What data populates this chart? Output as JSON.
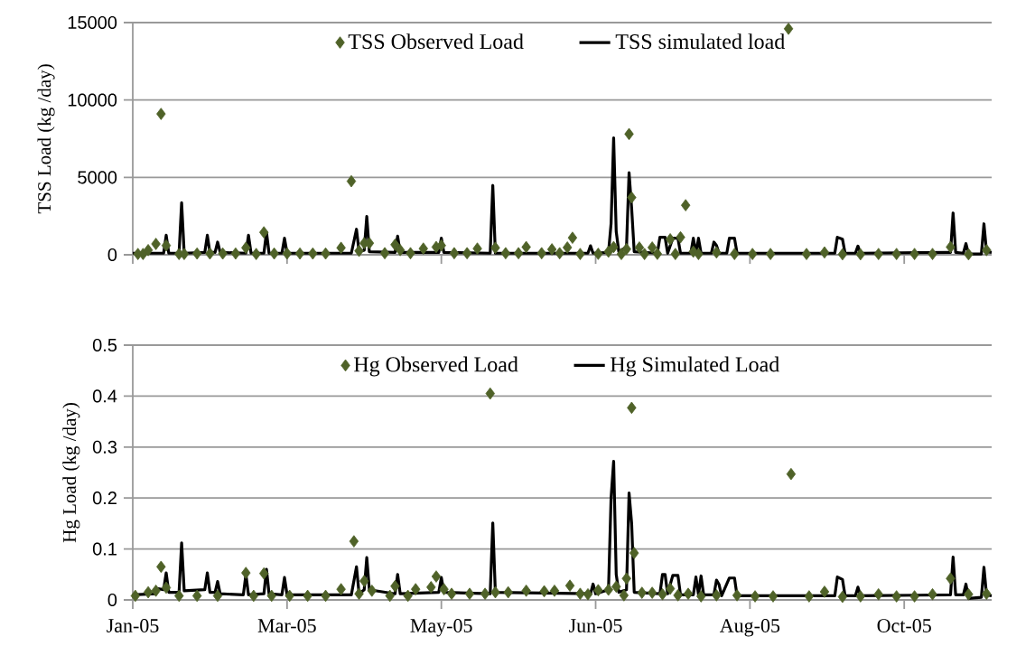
{
  "chart_data": [
    {
      "type": "line",
      "ylabel": "TSS Load (kg /day)",
      "ylim": [
        0,
        15000
      ],
      "yticks": [
        0,
        5000,
        10000,
        15000
      ],
      "xlim": [
        "2005-01-01",
        "2005-12-01"
      ],
      "xticks": [
        {
          "value": "2005-01-01",
          "label": null
        },
        {
          "value": "2005-03-02",
          "label": null
        },
        {
          "value": "2005-05-01",
          "label": null
        },
        {
          "value": "2005-06-30",
          "label": null
        },
        {
          "value": "2005-08-29",
          "label": null
        },
        {
          "value": "2005-10-28",
          "label": null
        }
      ],
      "tick_labels": "y",
      "grid": "y",
      "legend": "top",
      "series": [
        {
          "name": "TSS Observed Load",
          "type": "scatter",
          "marker": "diamond",
          "color": "#4f6228",
          "x": [
            "2005-01-03",
            "2005-01-05",
            "2005-01-07",
            "2005-01-10",
            "2005-01-12",
            "2005-01-14",
            "2005-01-19",
            "2005-01-21",
            "2005-01-26",
            "2005-01-31",
            "2005-02-05",
            "2005-02-10",
            "2005-02-14",
            "2005-02-18",
            "2005-02-21",
            "2005-02-25",
            "2005-03-02",
            "2005-03-07",
            "2005-03-12",
            "2005-03-17",
            "2005-03-23",
            "2005-03-27",
            "2005-03-30",
            "2005-04-01",
            "2005-04-03",
            "2005-04-09",
            "2005-04-13",
            "2005-04-15",
            "2005-04-19",
            "2005-04-24",
            "2005-04-29",
            "2005-05-01",
            "2005-05-06",
            "2005-05-11",
            "2005-05-15",
            "2005-05-22",
            "2005-05-26",
            "2005-05-31",
            "2005-06-03",
            "2005-06-09",
            "2005-06-13",
            "2005-06-16",
            "2005-06-19",
            "2005-06-21",
            "2005-06-24",
            "2005-07-01",
            "2005-07-05",
            "2005-07-07",
            "2005-07-10",
            "2005-07-12",
            "2005-07-13",
            "2005-07-14",
            "2005-07-17",
            "2005-07-19",
            "2005-07-22",
            "2005-07-24",
            "2005-07-29",
            "2005-07-31",
            "2005-08-02",
            "2005-08-04",
            "2005-08-07",
            "2005-08-09",
            "2005-08-16",
            "2005-08-23",
            "2005-08-30",
            "2005-09-06",
            "2005-09-13",
            "2005-09-20",
            "2005-09-27",
            "2005-10-04",
            "2005-10-11",
            "2005-10-18",
            "2005-10-25",
            "2005-11-01",
            "2005-11-08",
            "2005-11-15",
            "2005-11-22",
            "2005-11-29"
          ],
          "values": [
            50,
            50,
            300,
            700,
            9100,
            600,
            50,
            50,
            80,
            80,
            80,
            80,
            450,
            50,
            1450,
            80,
            80,
            80,
            80,
            80,
            450,
            4750,
            250,
            750,
            750,
            100,
            650,
            300,
            100,
            400,
            500,
            600,
            100,
            100,
            400,
            450,
            100,
            100,
            500,
            100,
            350,
            100,
            470,
            1100,
            50,
            60,
            200,
            500,
            50,
            370,
            7800,
            3700,
            470,
            50,
            470,
            60,
            1000,
            50,
            1130,
            3200,
            200,
            50,
            150,
            50,
            50,
            50,
            14600,
            50,
            150,
            30,
            30,
            50,
            50,
            50,
            50,
            500,
            30,
            300
          ]
        },
        {
          "name": "TSS simulated load",
          "type": "line",
          "color": "#000000",
          "x": [
            "2005-01-01",
            "2005-01-13",
            "2005-01-14",
            "2005-01-15",
            "2005-01-19",
            "2005-01-20",
            "2005-01-21",
            "2005-01-29",
            "2005-01-30",
            "2005-01-31",
            "2005-02-02",
            "2005-02-03",
            "2005-02-04",
            "2005-02-14",
            "2005-02-15",
            "2005-02-16",
            "2005-02-21",
            "2005-02-22",
            "2005-02-23",
            "2005-02-28",
            "2005-03-01",
            "2005-03-02",
            "2005-03-27",
            "2005-03-29",
            "2005-03-30",
            "2005-04-01",
            "2005-04-02",
            "2005-04-03",
            "2005-04-13",
            "2005-04-14",
            "2005-04-15",
            "2005-04-30",
            "2005-05-01",
            "2005-05-02",
            "2005-05-20",
            "2005-05-21",
            "2005-05-22",
            "2005-06-27",
            "2005-06-28",
            "2005-06-29",
            "2005-07-05",
            "2005-07-06",
            "2005-07-07",
            "2005-07-08",
            "2005-07-09",
            "2005-07-12",
            "2005-07-13",
            "2005-07-14",
            "2005-07-15",
            "2005-07-24",
            "2005-07-25",
            "2005-07-27",
            "2005-07-28",
            "2005-07-30",
            "2005-08-01",
            "2005-08-02",
            "2005-08-06",
            "2005-08-07",
            "2005-08-08",
            "2005-08-09",
            "2005-08-10",
            "2005-08-14",
            "2005-08-15",
            "2005-08-16",
            "2005-08-17",
            "2005-08-20",
            "2005-08-21",
            "2005-08-23",
            "2005-08-24",
            "2005-10-01",
            "2005-10-02",
            "2005-10-04",
            "2005-10-05",
            "2005-10-09",
            "2005-10-10",
            "2005-10-11",
            "2005-11-14",
            "2005-11-15",
            "2005-11-16",
            "2005-11-17",
            "2005-11-20",
            "2005-11-21",
            "2005-11-22",
            "2005-11-27",
            "2005-11-28",
            "2005-11-29",
            "2005-12-01"
          ],
          "values": [
            100,
            100,
            1260,
            100,
            100,
            3370,
            100,
            150,
            1260,
            150,
            150,
            820,
            150,
            100,
            1260,
            100,
            100,
            1460,
            100,
            100,
            1070,
            100,
            100,
            1650,
            200,
            300,
            2470,
            200,
            150,
            1200,
            150,
            150,
            1070,
            150,
            100,
            4480,
            100,
            100,
            580,
            100,
            150,
            2000,
            7550,
            1500,
            200,
            500,
            5300,
            3000,
            200,
            100,
            1130,
            1130,
            100,
            1070,
            1070,
            100,
            100,
            1070,
            100,
            1070,
            100,
            100,
            820,
            600,
            100,
            100,
            1070,
            1070,
            100,
            100,
            1130,
            1000,
            100,
            100,
            560,
            100,
            150,
            150,
            2700,
            150,
            100,
            720,
            50,
            50,
            2000,
            200,
            150
          ]
        }
      ]
    },
    {
      "type": "line",
      "ylabel": "Hg Load (kg /day)",
      "ylim": [
        0,
        0.5
      ],
      "yticks": [
        0,
        0.1,
        0.2,
        0.3,
        0.4,
        0.5
      ],
      "xlim": [
        "2005-01-01",
        "2005-12-01"
      ],
      "xticks": [
        {
          "value": "2005-01-01",
          "label": "Jan-05"
        },
        {
          "value": "2005-03-02",
          "label": "Mar-05"
        },
        {
          "value": "2005-05-01",
          "label": "May-05"
        },
        {
          "value": "2005-06-30",
          "label": "Jun-05"
        },
        {
          "value": "2005-08-29",
          "label": "Aug-05"
        },
        {
          "value": "2005-10-28",
          "label": "Oct-05"
        }
      ],
      "grid": "y",
      "legend": "top",
      "series": [
        {
          "name": "Hg Observed Load",
          "type": "scatter",
          "marker": "diamond",
          "color": "#4f6228",
          "x": [
            "2005-01-02",
            "2005-01-07",
            "2005-01-10",
            "2005-01-12",
            "2005-01-14",
            "2005-01-19",
            "2005-01-26",
            "2005-02-03",
            "2005-02-14",
            "2005-02-17",
            "2005-02-21",
            "2005-02-24",
            "2005-03-03",
            "2005-03-10",
            "2005-03-17",
            "2005-03-23",
            "2005-03-28",
            "2005-03-30",
            "2005-04-01",
            "2005-04-04",
            "2005-04-11",
            "2005-04-13",
            "2005-04-18",
            "2005-04-21",
            "2005-04-27",
            "2005-04-29",
            "2005-05-02",
            "2005-05-05",
            "2005-05-12",
            "2005-05-18",
            "2005-05-20",
            "2005-05-22",
            "2005-05-27",
            "2005-06-03",
            "2005-06-10",
            "2005-06-14",
            "2005-06-20",
            "2005-06-24",
            "2005-06-27",
            "2005-07-01",
            "2005-07-05",
            "2005-07-08",
            "2005-07-11",
            "2005-07-12",
            "2005-07-14",
            "2005-07-15",
            "2005-07-18",
            "2005-07-22",
            "2005-07-26",
            "2005-07-29",
            "2005-08-01",
            "2005-08-05",
            "2005-08-10",
            "2005-08-16",
            "2005-08-24",
            "2005-08-31",
            "2005-09-07",
            "2005-09-14",
            "2005-09-21",
            "2005-09-27",
            "2005-10-04",
            "2005-10-11",
            "2005-10-18",
            "2005-10-25",
            "2005-11-01",
            "2005-11-08",
            "2005-11-15",
            "2005-11-22",
            "2005-11-29"
          ],
          "values": [
            0.008,
            0.015,
            0.018,
            0.065,
            0.024,
            0.008,
            0.008,
            0.008,
            0.053,
            0.008,
            0.052,
            0.008,
            0.008,
            0.008,
            0.008,
            0.021,
            0.115,
            0.012,
            0.037,
            0.018,
            0.008,
            0.027,
            0.008,
            0.021,
            0.025,
            0.046,
            0.021,
            0.012,
            0.012,
            0.012,
            0.405,
            0.015,
            0.015,
            0.018,
            0.017,
            0.018,
            0.028,
            0.012,
            0.011,
            0.019,
            0.02,
            0.026,
            0.009,
            0.042,
            0.377,
            0.092,
            0.014,
            0.014,
            0.011,
            0.022,
            0.009,
            0.012,
            0.007,
            0.009,
            0.009,
            0.007,
            0.007,
            0.247,
            0.007,
            0.016,
            0.006,
            0.007,
            0.011,
            0.007,
            0.007,
            0.011,
            0.042,
            0.011,
            0.012
          ]
        },
        {
          "name": "Hg Simulated Load",
          "type": "line",
          "color": "#000000",
          "x": [
            "2005-01-01",
            "2005-01-10",
            "2005-01-11",
            "2005-01-13",
            "2005-01-14",
            "2005-01-15",
            "2005-01-19",
            "2005-01-20",
            "2005-01-21",
            "2005-01-29",
            "2005-01-30",
            "2005-01-31",
            "2005-02-02",
            "2005-02-03",
            "2005-02-04",
            "2005-02-13",
            "2005-02-14",
            "2005-02-15",
            "2005-02-21",
            "2005-02-22",
            "2005-02-23",
            "2005-02-28",
            "2005-03-01",
            "2005-03-02",
            "2005-03-27",
            "2005-03-29",
            "2005-03-30",
            "2005-04-01",
            "2005-04-02",
            "2005-04-03",
            "2005-04-13",
            "2005-04-14",
            "2005-04-15",
            "2005-04-30",
            "2005-05-01",
            "2005-05-02",
            "2005-05-20",
            "2005-05-21",
            "2005-05-22",
            "2005-06-28",
            "2005-06-29",
            "2005-06-30",
            "2005-07-05",
            "2005-07-06",
            "2005-07-07",
            "2005-07-08",
            "2005-07-09",
            "2005-07-12",
            "2005-07-13",
            "2005-07-14",
            "2005-07-15",
            "2005-07-25",
            "2005-07-26",
            "2005-07-27",
            "2005-07-28",
            "2005-07-30",
            "2005-08-01",
            "2005-08-02",
            "2005-08-07",
            "2005-08-08",
            "2005-08-09",
            "2005-08-10",
            "2005-08-11",
            "2005-08-15",
            "2005-08-16",
            "2005-08-17",
            "2005-08-18",
            "2005-08-21",
            "2005-08-23",
            "2005-08-24",
            "2005-10-01",
            "2005-10-02",
            "2005-10-04",
            "2005-10-05",
            "2005-10-09",
            "2005-10-10",
            "2005-10-11",
            "2005-11-15",
            "2005-11-16",
            "2005-11-17",
            "2005-11-20",
            "2005-11-21",
            "2005-11-22",
            "2005-11-27",
            "2005-11-28",
            "2005-11-29",
            "2005-12-01"
          ],
          "values": [
            0.01,
            0.012,
            0.022,
            0.02,
            0.053,
            0.015,
            0.015,
            0.112,
            0.018,
            0.02,
            0.053,
            0.015,
            0.015,
            0.036,
            0.012,
            0.01,
            0.05,
            0.01,
            0.012,
            0.06,
            0.012,
            0.01,
            0.044,
            0.01,
            0.01,
            0.065,
            0.012,
            0.02,
            0.083,
            0.02,
            0.012,
            0.05,
            0.012,
            0.015,
            0.044,
            0.015,
            0.012,
            0.151,
            0.015,
            0.012,
            0.031,
            0.012,
            0.02,
            0.2,
            0.272,
            0.05,
            0.015,
            0.02,
            0.21,
            0.15,
            0.015,
            0.012,
            0.05,
            0.05,
            0.012,
            0.048,
            0.048,
            0.01,
            0.01,
            0.045,
            0.01,
            0.047,
            0.01,
            0.01,
            0.039,
            0.03,
            0.008,
            0.043,
            0.043,
            0.008,
            0.008,
            0.045,
            0.04,
            0.008,
            0.008,
            0.025,
            0.008,
            0.01,
            0.084,
            0.01,
            0.01,
            0.031,
            0.003,
            0.005,
            0.064,
            0.01,
            0.008
          ]
        }
      ]
    }
  ]
}
